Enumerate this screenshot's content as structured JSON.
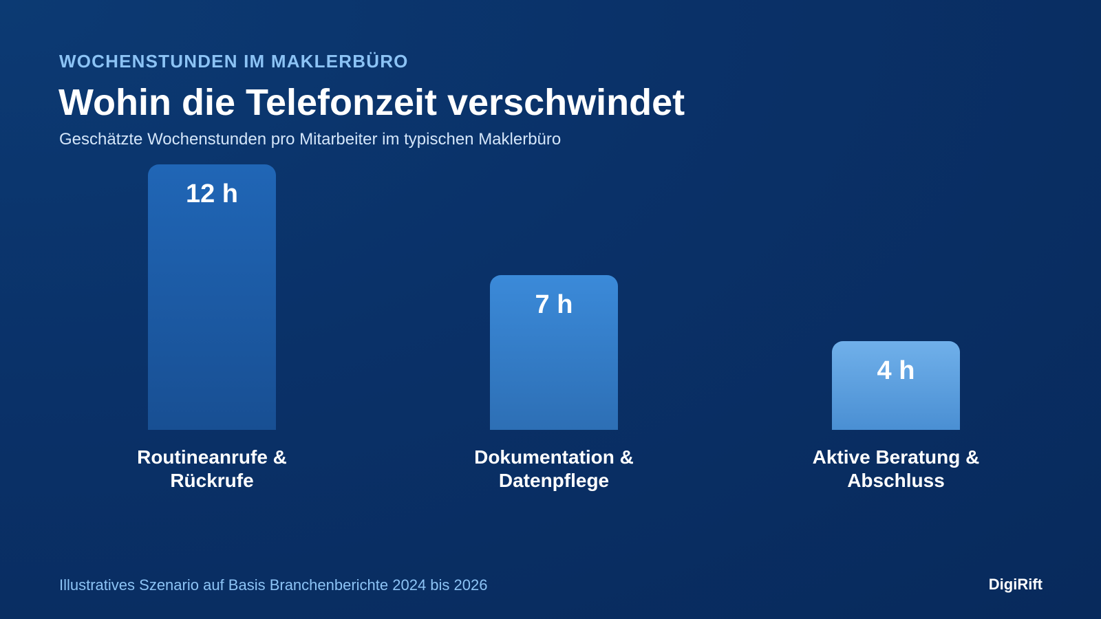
{
  "header": {
    "kicker": "WOCHENSTUNDEN IM MAKLERBÜRO",
    "title": "Wohin die Telefonzeit verschwindet",
    "subtitle": "Geschätzte Wochenstunden pro Mitarbeiter im typischen Maklerbüro"
  },
  "footer": {
    "note": "Illustratives Szenario auf Basis Branchenberichte 2024 bis 2026",
    "brand": "DigiRift"
  },
  "colors": {
    "background": "#0a3168",
    "kicker": "#8cc3f5",
    "bar_gradients": [
      [
        "#2066b6",
        "#184f93"
      ],
      [
        "#3b8ad9",
        "#2d6fb5"
      ],
      [
        "#70b0ea",
        "#4a8fd3"
      ]
    ]
  },
  "chart_data": {
    "type": "bar",
    "title": "Wohin die Telefonzeit verschwindet",
    "subtitle": "Geschätzte Wochenstunden pro Mitarbeiter im typischen Maklerbüro",
    "categories": [
      [
        "Routineanrufe &",
        "Rückrufe"
      ],
      [
        "Dokumentation &",
        "Datenpflege"
      ],
      [
        "Aktive Beratung &",
        "Abschluss"
      ]
    ],
    "values": [
      12,
      7,
      4
    ],
    "value_labels": [
      "12 h",
      "7 h",
      "4 h"
    ],
    "unit": "h",
    "ylim": [
      0,
      12
    ],
    "grid": false,
    "legend": "none"
  }
}
